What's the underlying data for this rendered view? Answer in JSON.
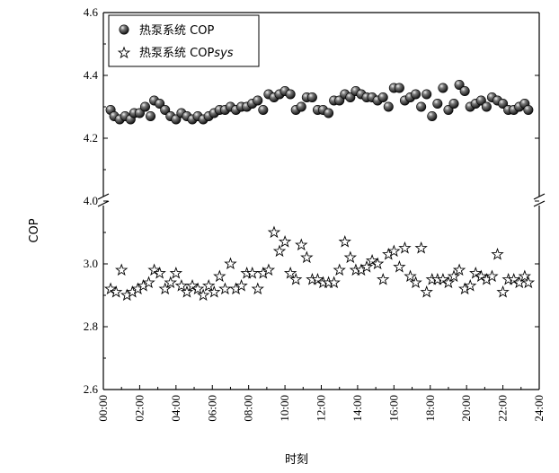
{
  "chart_data": {
    "type": "scatter",
    "broken_y_axis": true,
    "ylabel": "COP",
    "xlabel": "时刻",
    "x_ticks": [
      "00:00",
      "02:00",
      "04:00",
      "06:00",
      "08:00",
      "10:00",
      "12:00",
      "14:00",
      "16:00",
      "18:00",
      "20:00",
      "22:00",
      "24:00"
    ],
    "x_range_hours": [
      0,
      24
    ],
    "upper_panel": {
      "ylim": [
        4.0,
        4.6
      ],
      "y_ticks": [
        "4.0",
        "4.2",
        "4.4",
        "4.6"
      ]
    },
    "lower_panel": {
      "ylim": [
        2.6,
        3.2
      ],
      "y_ticks": [
        "2.6",
        "2.8",
        "3.0"
      ]
    },
    "legend": {
      "position": "top-left",
      "items": [
        {
          "label": "热泵系统 COP",
          "marker": "sphere"
        },
        {
          "label_main": "热泵系统 COP",
          "label_italic": "sys",
          "marker": "star"
        }
      ]
    },
    "series": [
      {
        "name": "热泵系统 COP",
        "panel": "upper",
        "marker": "sphere",
        "x_hours": [
          0.4,
          0.6,
          0.9,
          1.2,
          1.5,
          1.7,
          2.0,
          2.3,
          2.6,
          2.8,
          3.1,
          3.4,
          3.7,
          4.0,
          4.3,
          4.6,
          4.9,
          5.2,
          5.5,
          5.8,
          6.1,
          6.4,
          6.7,
          7.0,
          7.3,
          7.6,
          7.9,
          8.2,
          8.5,
          8.8,
          9.1,
          9.4,
          9.7,
          10.0,
          10.3,
          10.6,
          10.9,
          11.2,
          11.5,
          11.8,
          12.1,
          12.4,
          12.7,
          13.0,
          13.3,
          13.6,
          13.9,
          14.2,
          14.5,
          14.8,
          15.1,
          15.4,
          15.7,
          16.0,
          16.3,
          16.6,
          16.9,
          17.2,
          17.5,
          17.8,
          18.1,
          18.4,
          18.7,
          19.0,
          19.3,
          19.6,
          19.9,
          20.2,
          20.5,
          20.8,
          21.1,
          21.4,
          21.7,
          22.0,
          22.3,
          22.6,
          22.9,
          23.2,
          23.4
        ],
        "y": [
          4.29,
          4.27,
          4.26,
          4.27,
          4.26,
          4.28,
          4.28,
          4.3,
          4.27,
          4.32,
          4.31,
          4.29,
          4.27,
          4.26,
          4.28,
          4.27,
          4.26,
          4.27,
          4.26,
          4.27,
          4.28,
          4.29,
          4.29,
          4.3,
          4.29,
          4.3,
          4.3,
          4.31,
          4.32,
          4.29,
          4.34,
          4.33,
          4.34,
          4.35,
          4.34,
          4.29,
          4.3,
          4.33,
          4.33,
          4.29,
          4.29,
          4.28,
          4.32,
          4.32,
          4.34,
          4.33,
          4.35,
          4.34,
          4.33,
          4.33,
          4.32,
          4.33,
          4.3,
          4.36,
          4.36,
          4.32,
          4.33,
          4.34,
          4.3,
          4.34,
          4.27,
          4.31,
          4.36,
          4.29,
          4.31,
          4.37,
          4.35,
          4.3,
          4.31,
          4.32,
          4.3,
          4.33,
          4.32,
          4.31,
          4.29,
          4.29,
          4.3,
          4.31,
          4.29
        ]
      },
      {
        "name": "热泵系统 COPsys",
        "panel": "lower",
        "marker": "star",
        "x_hours": [
          0.4,
          0.7,
          1.0,
          1.3,
          1.6,
          1.9,
          2.2,
          2.5,
          2.8,
          3.1,
          3.4,
          3.7,
          4.0,
          4.3,
          4.6,
          4.9,
          5.2,
          5.5,
          5.8,
          6.1,
          6.4,
          6.7,
          7.0,
          7.3,
          7.6,
          7.9,
          8.2,
          8.5,
          8.8,
          9.1,
          9.4,
          9.7,
          10.0,
          10.3,
          10.6,
          10.9,
          11.2,
          11.5,
          11.8,
          12.1,
          12.4,
          12.7,
          13.0,
          13.3,
          13.6,
          13.9,
          14.2,
          14.5,
          14.8,
          15.1,
          15.4,
          15.7,
          16.0,
          16.3,
          16.6,
          16.9,
          17.2,
          17.5,
          17.8,
          18.1,
          18.4,
          18.7,
          19.0,
          19.3,
          19.6,
          19.9,
          20.2,
          20.5,
          20.8,
          21.1,
          21.4,
          21.7,
          22.0,
          22.3,
          22.6,
          22.9,
          23.2,
          23.4
        ],
        "y": [
          2.92,
          2.91,
          2.98,
          2.9,
          2.91,
          2.92,
          2.93,
          2.94,
          2.98,
          2.97,
          2.92,
          2.94,
          2.97,
          2.93,
          2.91,
          2.93,
          2.92,
          2.9,
          2.93,
          2.91,
          2.96,
          2.92,
          3.0,
          2.92,
          2.93,
          2.97,
          2.97,
          2.92,
          2.97,
          2.98,
          3.1,
          3.04,
          3.07,
          2.97,
          2.95,
          3.06,
          3.02,
          2.95,
          2.95,
          2.94,
          2.94,
          2.94,
          2.98,
          3.07,
          3.02,
          2.98,
          2.98,
          2.99,
          3.01,
          3.0,
          2.95,
          3.03,
          3.04,
          2.99,
          3.05,
          2.96,
          2.94,
          3.05,
          2.91,
          2.95,
          2.95,
          2.95,
          2.94,
          2.96,
          2.98,
          2.92,
          2.93,
          2.97,
          2.96,
          2.95,
          2.96,
          3.03,
          2.91,
          2.95,
          2.95,
          2.94,
          2.96,
          2.94
        ]
      }
    ]
  }
}
